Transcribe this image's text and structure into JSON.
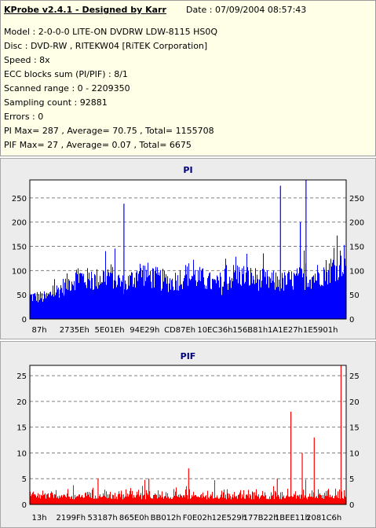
{
  "info": {
    "title": "KProbe v2.4.1 - Designed by Karr",
    "date": "Date : 07/09/2004 08:57:43",
    "lines": [
      "Model : 2-0-0-0 LITE-ON DVDRW LDW-8115   HS0Q",
      "Disc : DVD-RW , RITEKW04 [RiTEK Corporation]",
      "Speed : 8x",
      "ECC blocks sum (PI/PIF) : 8/1",
      "Scanned range : 0 - 2209350",
      "Sampling count : 92881",
      "Errors : 0",
      "PI Max= 287 , Average= 70.75 , Total= 1155708",
      "PIF Max= 27 , Average= 0.07 , Total= 6675"
    ]
  },
  "colors": {
    "pi_bars": "#0000ff",
    "pif_bars": "#ff0000",
    "plot_bg": "#ffffff",
    "panel_bg": "#ececec",
    "info_bg": "#ffffe8"
  },
  "chart_data": [
    {
      "type": "bar",
      "title": "PI",
      "ylim": [
        0,
        287
      ],
      "yticks": [
        0,
        50,
        100,
        150,
        200,
        250
      ],
      "xticks": [
        "87h",
        "2735Eh",
        "5E01Eh",
        "94E29h",
        "CD87Eh",
        "10EC36h",
        "156B81h",
        "1A1E27h",
        "1E5901h"
      ],
      "grid": true,
      "series": [
        {
          "sampled_profile": {
            "x": [
              0,
              0.05,
              0.1,
              0.15,
              0.2,
              0.25,
              0.3,
              0.35,
              0.4,
              0.45,
              0.5,
              0.55,
              0.6,
              0.65,
              0.7,
              0.75,
              0.8,
              0.85,
              0.9,
              0.95,
              1.0
            ],
            "y": [
              50,
              48,
              70,
              95,
              85,
              100,
              75,
              105,
              90,
              82,
              100,
              88,
              72,
              100,
              92,
              85,
              82,
              90,
              95,
              110,
              135
            ]
          },
          "spikes": [
            {
              "x": 0.297,
              "y": 238
            },
            {
              "x": 0.793,
              "y": 275
            },
            {
              "x": 0.856,
              "y": 200
            },
            {
              "x": 0.874,
              "y": 287
            }
          ]
        }
      ]
    },
    {
      "type": "bar",
      "title": "PIF",
      "ylim": [
        0,
        27
      ],
      "yticks": [
        0,
        5,
        10,
        15,
        20,
        25
      ],
      "xticks": [
        "13h",
        "2199Fh",
        "53187h",
        "865E0h",
        "BB012h",
        "F0E02h",
        "12E529h",
        "177B22h",
        "1BEE11h",
        "2081C6h"
      ],
      "grid": true,
      "series": [
        {
          "baseline": [
            1,
            2
          ],
          "spikes": [
            {
              "x": 0.215,
              "y": 5
            },
            {
              "x": 0.376,
              "y": 5
            },
            {
              "x": 0.502,
              "y": 7
            },
            {
              "x": 0.783,
              "y": 5
            },
            {
              "x": 0.826,
              "y": 18
            },
            {
              "x": 0.862,
              "y": 10
            },
            {
              "x": 0.9,
              "y": 13
            },
            {
              "x": 0.985,
              "y": 27
            }
          ]
        }
      ]
    }
  ]
}
